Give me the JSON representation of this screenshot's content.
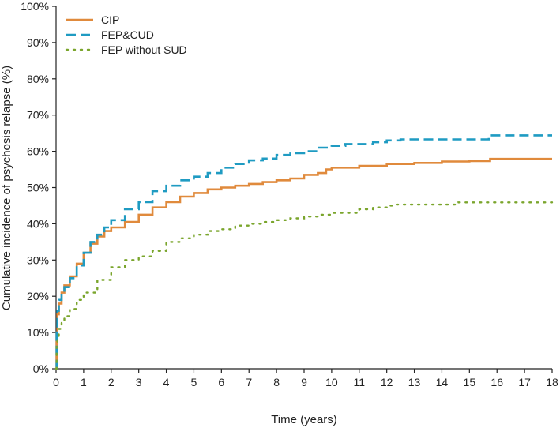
{
  "chart_data": {
    "type": "line",
    "title": "",
    "xlabel": "Time (years)",
    "ylabel": "Cumulative incidence of psychosis relapse (%)",
    "xlim": [
      0,
      18
    ],
    "ylim": [
      0,
      100
    ],
    "x_ticks": [
      "0",
      "1",
      "2",
      "3",
      "4",
      "5",
      "6",
      "7",
      "8",
      "9",
      "10",
      "11",
      "12",
      "13",
      "14",
      "15",
      "16",
      "17",
      "18"
    ],
    "y_ticks": [
      "0%",
      "10%",
      "20%",
      "30%",
      "40%",
      "50%",
      "60%",
      "70%",
      "80%",
      "90%",
      "100%"
    ],
    "grid": false,
    "legend_position": "top-left",
    "series": [
      {
        "name": "CIP",
        "color": "#e08a3c",
        "style": "solid",
        "points": [
          [
            0,
            0
          ],
          [
            0.02,
            10
          ],
          [
            0.05,
            15
          ],
          [
            0.1,
            18
          ],
          [
            0.2,
            21
          ],
          [
            0.3,
            23
          ],
          [
            0.5,
            25.5
          ],
          [
            0.75,
            29
          ],
          [
            1,
            32
          ],
          [
            1.25,
            34.5
          ],
          [
            1.5,
            36.5
          ],
          [
            1.75,
            38
          ],
          [
            2,
            39
          ],
          [
            2.5,
            40.5
          ],
          [
            3,
            42.5
          ],
          [
            3.5,
            44.5
          ],
          [
            4,
            46
          ],
          [
            4.5,
            47.5
          ],
          [
            5,
            48.5
          ],
          [
            5.5,
            49.5
          ],
          [
            6,
            50
          ],
          [
            6.5,
            50.5
          ],
          [
            7,
            51
          ],
          [
            7.5,
            51.5
          ],
          [
            8,
            52
          ],
          [
            8.5,
            52.5
          ],
          [
            9,
            53.5
          ],
          [
            9.5,
            54
          ],
          [
            9.8,
            55
          ],
          [
            10,
            55.5
          ],
          [
            11,
            56
          ],
          [
            12,
            56.5
          ],
          [
            13,
            56.8
          ],
          [
            14,
            57.2
          ],
          [
            15,
            57.3
          ],
          [
            15.7,
            57.3
          ],
          [
            15.75,
            57.9
          ],
          [
            18,
            57.9
          ]
        ]
      },
      {
        "name": "FEP&CUD",
        "color": "#1f9bc2",
        "style": "dashed",
        "points": [
          [
            0,
            0
          ],
          [
            0.02,
            11
          ],
          [
            0.05,
            16
          ],
          [
            0.1,
            19
          ],
          [
            0.2,
            21
          ],
          [
            0.3,
            22.5
          ],
          [
            0.5,
            25
          ],
          [
            0.75,
            28.5
          ],
          [
            1,
            32
          ],
          [
            1.25,
            35
          ],
          [
            1.5,
            37
          ],
          [
            1.75,
            39
          ],
          [
            2,
            41
          ],
          [
            2.5,
            44
          ],
          [
            3,
            46
          ],
          [
            3.5,
            49
          ],
          [
            4,
            50.5
          ],
          [
            4.5,
            52
          ],
          [
            5,
            53
          ],
          [
            5.5,
            54
          ],
          [
            6,
            55.5
          ],
          [
            6.5,
            56.5
          ],
          [
            7,
            57.5
          ],
          [
            7.5,
            58
          ],
          [
            8,
            59
          ],
          [
            8.5,
            59.5
          ],
          [
            9,
            60
          ],
          [
            9.5,
            61
          ],
          [
            10,
            61.5
          ],
          [
            10.5,
            62
          ],
          [
            11,
            62
          ],
          [
            11.5,
            62.5
          ],
          [
            12,
            63
          ],
          [
            12.5,
            63.3
          ],
          [
            15.5,
            63.3
          ],
          [
            15.7,
            64.4
          ],
          [
            18,
            64.4
          ]
        ]
      },
      {
        "name": "FEP without SUD",
        "color": "#7aa52c",
        "style": "dotted",
        "points": [
          [
            0,
            0
          ],
          [
            0.02,
            6
          ],
          [
            0.05,
            9
          ],
          [
            0.1,
            11
          ],
          [
            0.2,
            13
          ],
          [
            0.3,
            14.5
          ],
          [
            0.5,
            16.5
          ],
          [
            0.75,
            19
          ],
          [
            1,
            21
          ],
          [
            1.5,
            24.5
          ],
          [
            2,
            28
          ],
          [
            2.5,
            30
          ],
          [
            3,
            31
          ],
          [
            3.5,
            32.5
          ],
          [
            4,
            35
          ],
          [
            4.5,
            36
          ],
          [
            5,
            37
          ],
          [
            5.5,
            38
          ],
          [
            6,
            38.5
          ],
          [
            6.5,
            39.5
          ],
          [
            7,
            40
          ],
          [
            7.5,
            40.5
          ],
          [
            8,
            41
          ],
          [
            8.5,
            41.5
          ],
          [
            9,
            42
          ],
          [
            9.5,
            42.5
          ],
          [
            10,
            43
          ],
          [
            10.5,
            43
          ],
          [
            11,
            44
          ],
          [
            11.5,
            44.5
          ],
          [
            12,
            45
          ],
          [
            12.3,
            45.3
          ],
          [
            14.5,
            45.3
          ],
          [
            14.6,
            45.9
          ],
          [
            18,
            45.9
          ]
        ]
      }
    ]
  }
}
